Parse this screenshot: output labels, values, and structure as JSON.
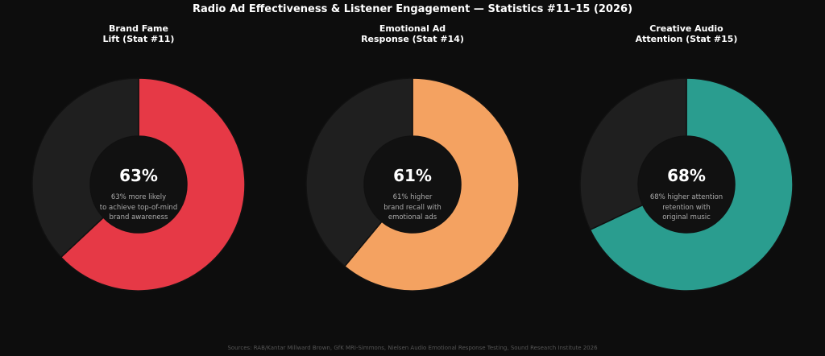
{
  "title": "Radio Ad Effectiveness & Listener Engagement — Statistics #11–15 (2026)",
  "source": "Sources: RAB/Kantar Millward Brown, GfK MRI-Simmons, Nielsen Audio Emotional Response Testing, Sound Research Institute 2026",
  "chart_data": [
    {
      "type": "pie",
      "donut": true,
      "title": "Brand Fame\nLift (Stat #11)",
      "values": [
        63,
        37
      ],
      "value_labels": [
        "63%",
        null
      ],
      "colors": [
        "#e63946",
        "#1f1f1f"
      ],
      "annotation": "63% more likely\nto achieve top-of-mind\nbrand awareness"
    },
    {
      "type": "pie",
      "donut": true,
      "title": "Emotional Ad\nResponse (Stat #14)",
      "values": [
        61,
        39
      ],
      "value_labels": [
        "61%",
        null
      ],
      "colors": [
        "#f4a261",
        "#1f1f1f"
      ],
      "annotation": "61% higher\nbrand recall with\nemotional ads"
    },
    {
      "type": "pie",
      "donut": true,
      "title": "Creative Audio\nAttention (Stat #15)",
      "values": [
        68,
        32
      ],
      "value_labels": [
        "68%",
        null
      ],
      "colors": [
        "#2a9d8f",
        "#1f1f1f"
      ],
      "annotation": "68% higher attention\nretention with\noriginal music"
    }
  ]
}
